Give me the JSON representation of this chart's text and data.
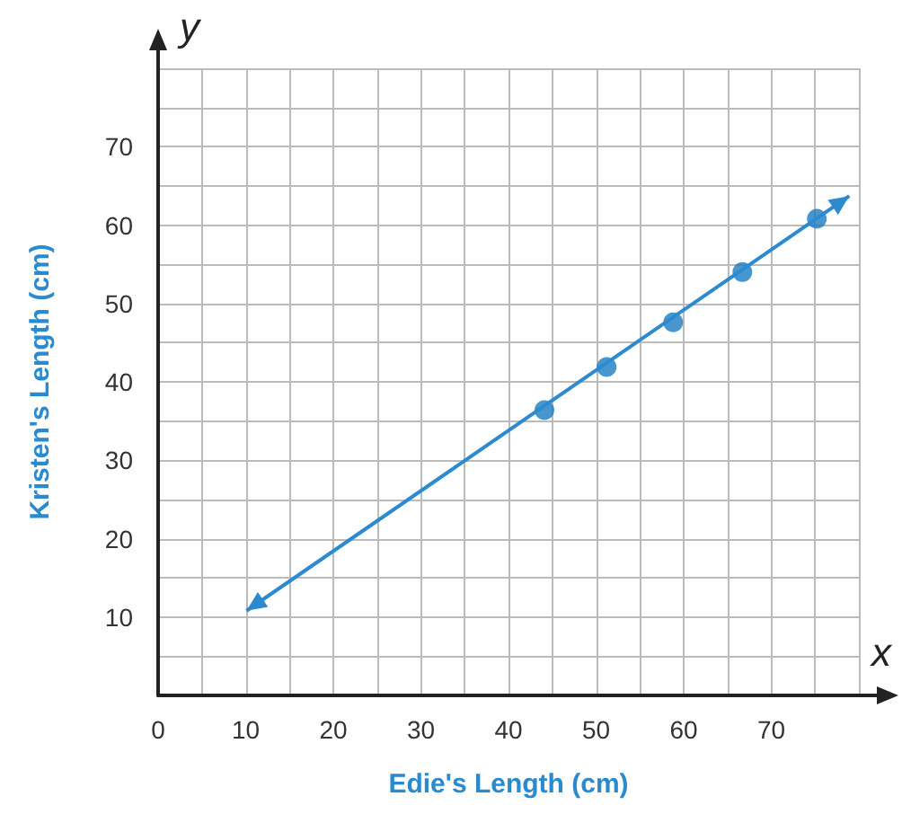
{
  "chart_data": {
    "type": "scatter",
    "xlabel": "Edie's Length (cm)",
    "ylabel": "Kristen's Length (cm)",
    "annotations": [
      "x",
      "y"
    ],
    "series": [
      {
        "color": "#1a7cc1",
        "x": [
          44.1,
          51.2,
          58.8,
          66.7,
          75.2
        ],
        "values": [
          36.4,
          41.9,
          47.6,
          54,
          60.8
        ],
        "marker": "circle"
      },
      {
        "type": "line",
        "color": "#2b8ad0",
        "x": [
          10.1,
          78.9
        ],
        "values": [
          10.8,
          63.7
        ],
        "marker": "none"
      }
    ],
    "xlim": [
      0,
      80
    ],
    "ylim": [
      0,
      80
    ],
    "xticks": [
      0,
      {
        "value": 5,
        "label": null
      },
      10,
      {
        "value": 15,
        "label": null
      },
      20,
      {
        "value": 25,
        "label": null
      },
      30,
      {
        "value": 35,
        "label": null
      },
      40,
      {
        "value": 45,
        "label": null
      },
      50,
      {
        "value": 55,
        "label": null
      },
      60,
      {
        "value": 65,
        "label": null
      },
      70,
      {
        "value": 75,
        "label": null
      },
      {
        "value": 80,
        "label": null
      }
    ],
    "yticks": [
      {
        "value": 5,
        "label": null
      },
      10,
      {
        "value": 15,
        "label": null
      },
      20,
      {
        "value": 25,
        "label": null
      },
      30,
      {
        "value": 35,
        "label": null
      },
      40,
      {
        "value": 45,
        "label": null
      },
      50,
      {
        "value": 55,
        "label": null
      },
      60,
      {
        "value": 65,
        "label": null
      },
      70,
      {
        "value": 75,
        "label": null
      },
      {
        "value": 80,
        "label": null
      }
    ],
    "grid": true
  }
}
